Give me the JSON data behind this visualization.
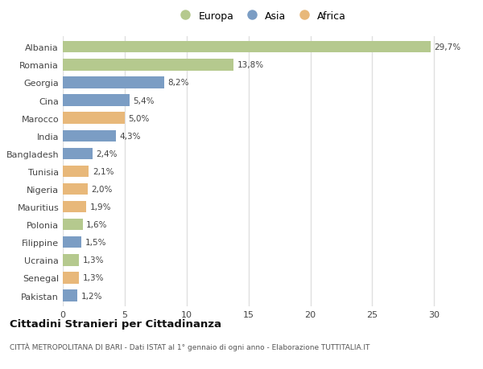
{
  "categories": [
    "Albania",
    "Romania",
    "Georgia",
    "Cina",
    "Marocco",
    "India",
    "Bangladesh",
    "Tunisia",
    "Nigeria",
    "Mauritius",
    "Polonia",
    "Filippine",
    "Ucraina",
    "Senegal",
    "Pakistan"
  ],
  "values": [
    29.7,
    13.8,
    8.2,
    5.4,
    5.0,
    4.3,
    2.4,
    2.1,
    2.0,
    1.9,
    1.6,
    1.5,
    1.3,
    1.3,
    1.2
  ],
  "labels": [
    "29,7%",
    "13,8%",
    "8,2%",
    "5,4%",
    "5,0%",
    "4,3%",
    "2,4%",
    "2,1%",
    "2,0%",
    "1,9%",
    "1,6%",
    "1,5%",
    "1,3%",
    "1,3%",
    "1,2%"
  ],
  "continent": [
    "Europa",
    "Europa",
    "Asia",
    "Asia",
    "Africa",
    "Asia",
    "Asia",
    "Africa",
    "Africa",
    "Africa",
    "Europa",
    "Asia",
    "Europa",
    "Africa",
    "Asia"
  ],
  "colors": {
    "Europa": "#b5c98e",
    "Asia": "#7b9dc4",
    "Africa": "#e8b87a"
  },
  "xlim": [
    0,
    32
  ],
  "xticks": [
    0,
    5,
    10,
    15,
    20,
    25,
    30
  ],
  "title": "Cittadini Stranieri per Cittadinanza",
  "subtitle": "CITTÀ METROPOLITANA DI BARI - Dati ISTAT al 1° gennaio di ogni anno - Elaborazione TUTTITALIA.IT",
  "legend_labels": [
    "Europa",
    "Asia",
    "Africa"
  ],
  "background_color": "#ffffff",
  "plot_bg_color": "#ffffff",
  "grid_color": "#e0e0e0",
  "bar_height": 0.65
}
